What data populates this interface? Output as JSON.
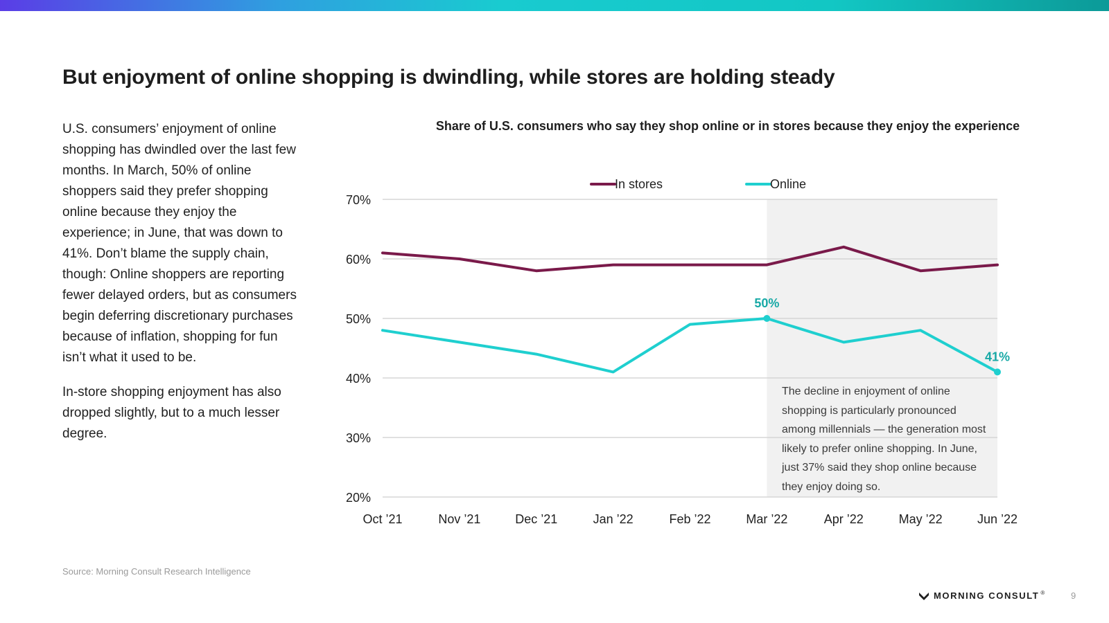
{
  "page": {
    "title": "But enjoyment of online shopping is dwindling, while stores are holding steady",
    "body_paragraphs": [
      "U.S. consumers’ enjoyment of online shopping has dwindled over the last few months. In March, 50% of online shoppers said they prefer shopping online because they enjoy the experience; in June, that was down to 41%. Don’t blame the supply chain, though: Online shoppers are reporting fewer delayed orders, but as consumers begin deferring discretionary purchases because of inflation, shopping for fun isn’t what it used to be.",
      "In-store shopping enjoyment has also dropped slightly, but to a much lesser degree."
    ],
    "callout": "The decline in enjoyment of online shopping is particularly pronounced among millennials — the generation most likely to prefer online shopping. In June, just 37% said they shop online because they enjoy doing so.",
    "source": "Source: Morning Consult Research Intelligence",
    "logo_text": "MORNING CONSULT",
    "logo_mark": "®",
    "page_number": "9",
    "colors": {
      "in_stores": "#7a1a4a",
      "online": "#1fcfcf",
      "highlight_bg": "#f1f1f1",
      "label_teal": "#18a9a6"
    }
  },
  "chart_data": {
    "type": "line",
    "title": "Share of U.S. consumers who say they shop online or in stores because they enjoy the experience",
    "categories": [
      "Oct ’21",
      "Nov ’21",
      "Dec ’21",
      "Jan ’22",
      "Feb ’22",
      "Mar ’22",
      "Apr ’22",
      "May ’22",
      "Jun ’22"
    ],
    "series": [
      {
        "name": "In stores",
        "values": [
          61,
          60,
          58,
          59,
          59,
          59,
          62,
          58,
          59
        ]
      },
      {
        "name": "Online",
        "values": [
          48,
          46,
          44,
          41,
          49,
          50,
          46,
          48,
          41
        ]
      }
    ],
    "ylim": [
      20,
      70
    ],
    "yticks": [
      20,
      30,
      40,
      50,
      60,
      70
    ],
    "ytick_labels": [
      "20%",
      "30%",
      "40%",
      "50%",
      "60%",
      "70%"
    ],
    "highlight_from_category": "Mar ’22",
    "annotations": [
      {
        "series": "Online",
        "category": "Mar ’22",
        "label": "50%"
      },
      {
        "series": "Online",
        "category": "Jun ’22",
        "label": "41%"
      }
    ],
    "legend_position": "top-center",
    "grid": true
  }
}
